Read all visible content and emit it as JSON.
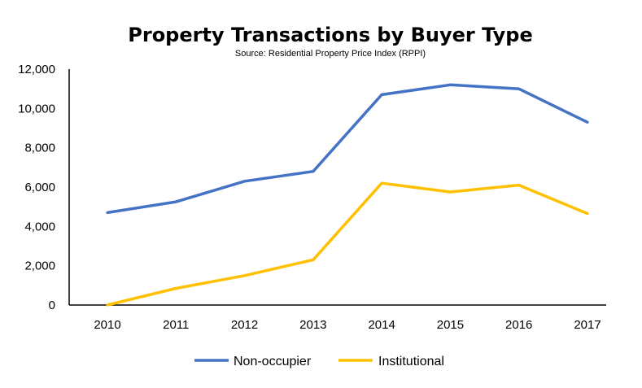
{
  "chart_data": {
    "type": "line",
    "title": "Property Transactions by Buyer Type",
    "subtitle": "Source: Residential Property Price Index (RPPI)",
    "xlabel": "",
    "ylabel": "",
    "categories": [
      "2010",
      "2011",
      "2012",
      "2013",
      "2014",
      "2015",
      "2016",
      "2017"
    ],
    "ylim": [
      0,
      12000
    ],
    "y_ticks": [
      0,
      2000,
      4000,
      6000,
      8000,
      10000,
      12000
    ],
    "y_tick_labels": [
      "0",
      "2,000",
      "4,000",
      "6,000",
      "8,000",
      "10,000",
      "12,000"
    ],
    "grid": false,
    "legend_position": "bottom",
    "series": [
      {
        "name": "Non-occupier",
        "color": "#4472C4",
        "values": [
          4700,
          5250,
          6300,
          6800,
          10700,
          11200,
          11000,
          9300
        ]
      },
      {
        "name": "Institutional",
        "color": "#FFC000",
        "values": [
          0,
          850,
          1500,
          2300,
          6200,
          5750,
          6100,
          4650
        ]
      }
    ]
  }
}
